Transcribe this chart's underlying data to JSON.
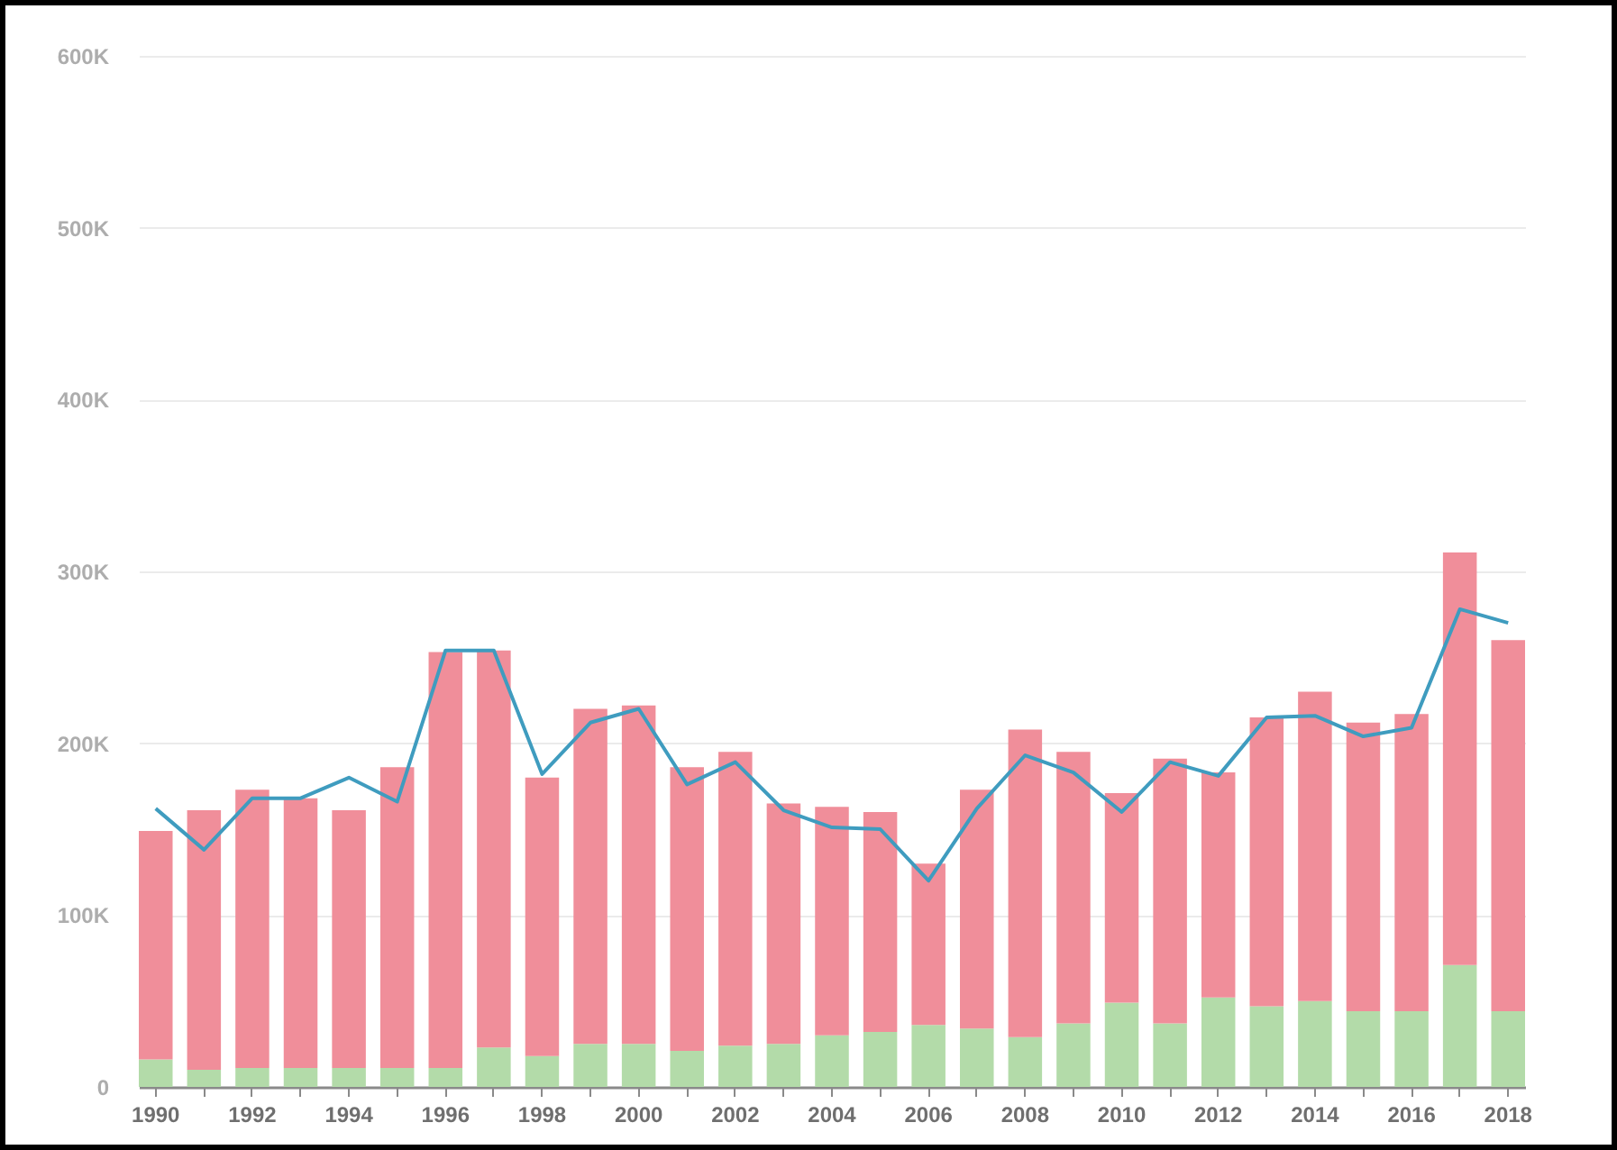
{
  "chart_data": {
    "type": "bar",
    "stacked": true,
    "grid": "y",
    "categories": [
      "1990",
      null,
      "1992",
      null,
      "1994",
      null,
      "1996",
      null,
      "1998",
      null,
      "2000",
      null,
      "2002",
      null,
      "2004",
      null,
      "2006",
      null,
      "2008",
      null,
      "2010",
      null,
      "2012",
      null,
      "2014",
      null,
      "2016",
      null,
      "2018"
    ],
    "series": [
      {
        "type": "bar",
        "color": "#b3dba9",
        "values": [
          16000,
          10000,
          11000,
          11000,
          11000,
          11000,
          11000,
          23000,
          18000,
          25000,
          25000,
          21000,
          24000,
          25000,
          30000,
          32000,
          36000,
          34000,
          29000,
          37000,
          49000,
          37000,
          52000,
          47000,
          50000,
          44000,
          44000,
          71000,
          44000
        ]
      },
      {
        "type": "bar",
        "color": "#f08e9a",
        "values": [
          133000,
          151000,
          162000,
          157000,
          150000,
          175000,
          242000,
          231000,
          162000,
          195000,
          197000,
          165000,
          171000,
          140000,
          133000,
          128000,
          94000,
          139000,
          179000,
          158000,
          122000,
          154000,
          131000,
          168000,
          180000,
          168000,
          173000,
          240000,
          216000
        ]
      },
      {
        "type": "line",
        "color": "#3f9cbf",
        "values": [
          162000,
          138000,
          168000,
          168000,
          180000,
          166000,
          254000,
          254000,
          182000,
          212000,
          220000,
          176000,
          189000,
          161000,
          151000,
          150000,
          120000,
          162000,
          193000,
          183000,
          160000,
          189000,
          181000,
          215000,
          216000,
          204000,
          209000,
          278000,
          270000
        ]
      }
    ],
    "ylim": [
      0,
      600000
    ],
    "yticks": [
      0,
      {
        "value": 100000,
        "label": "100K"
      },
      {
        "value": 200000,
        "label": "200K"
      },
      {
        "value": 300000,
        "label": "300K"
      },
      {
        "value": 400000,
        "label": "400K"
      },
      {
        "value": 500000,
        "label": "500K"
      },
      {
        "value": 600000,
        "label": "600K"
      }
    ]
  }
}
